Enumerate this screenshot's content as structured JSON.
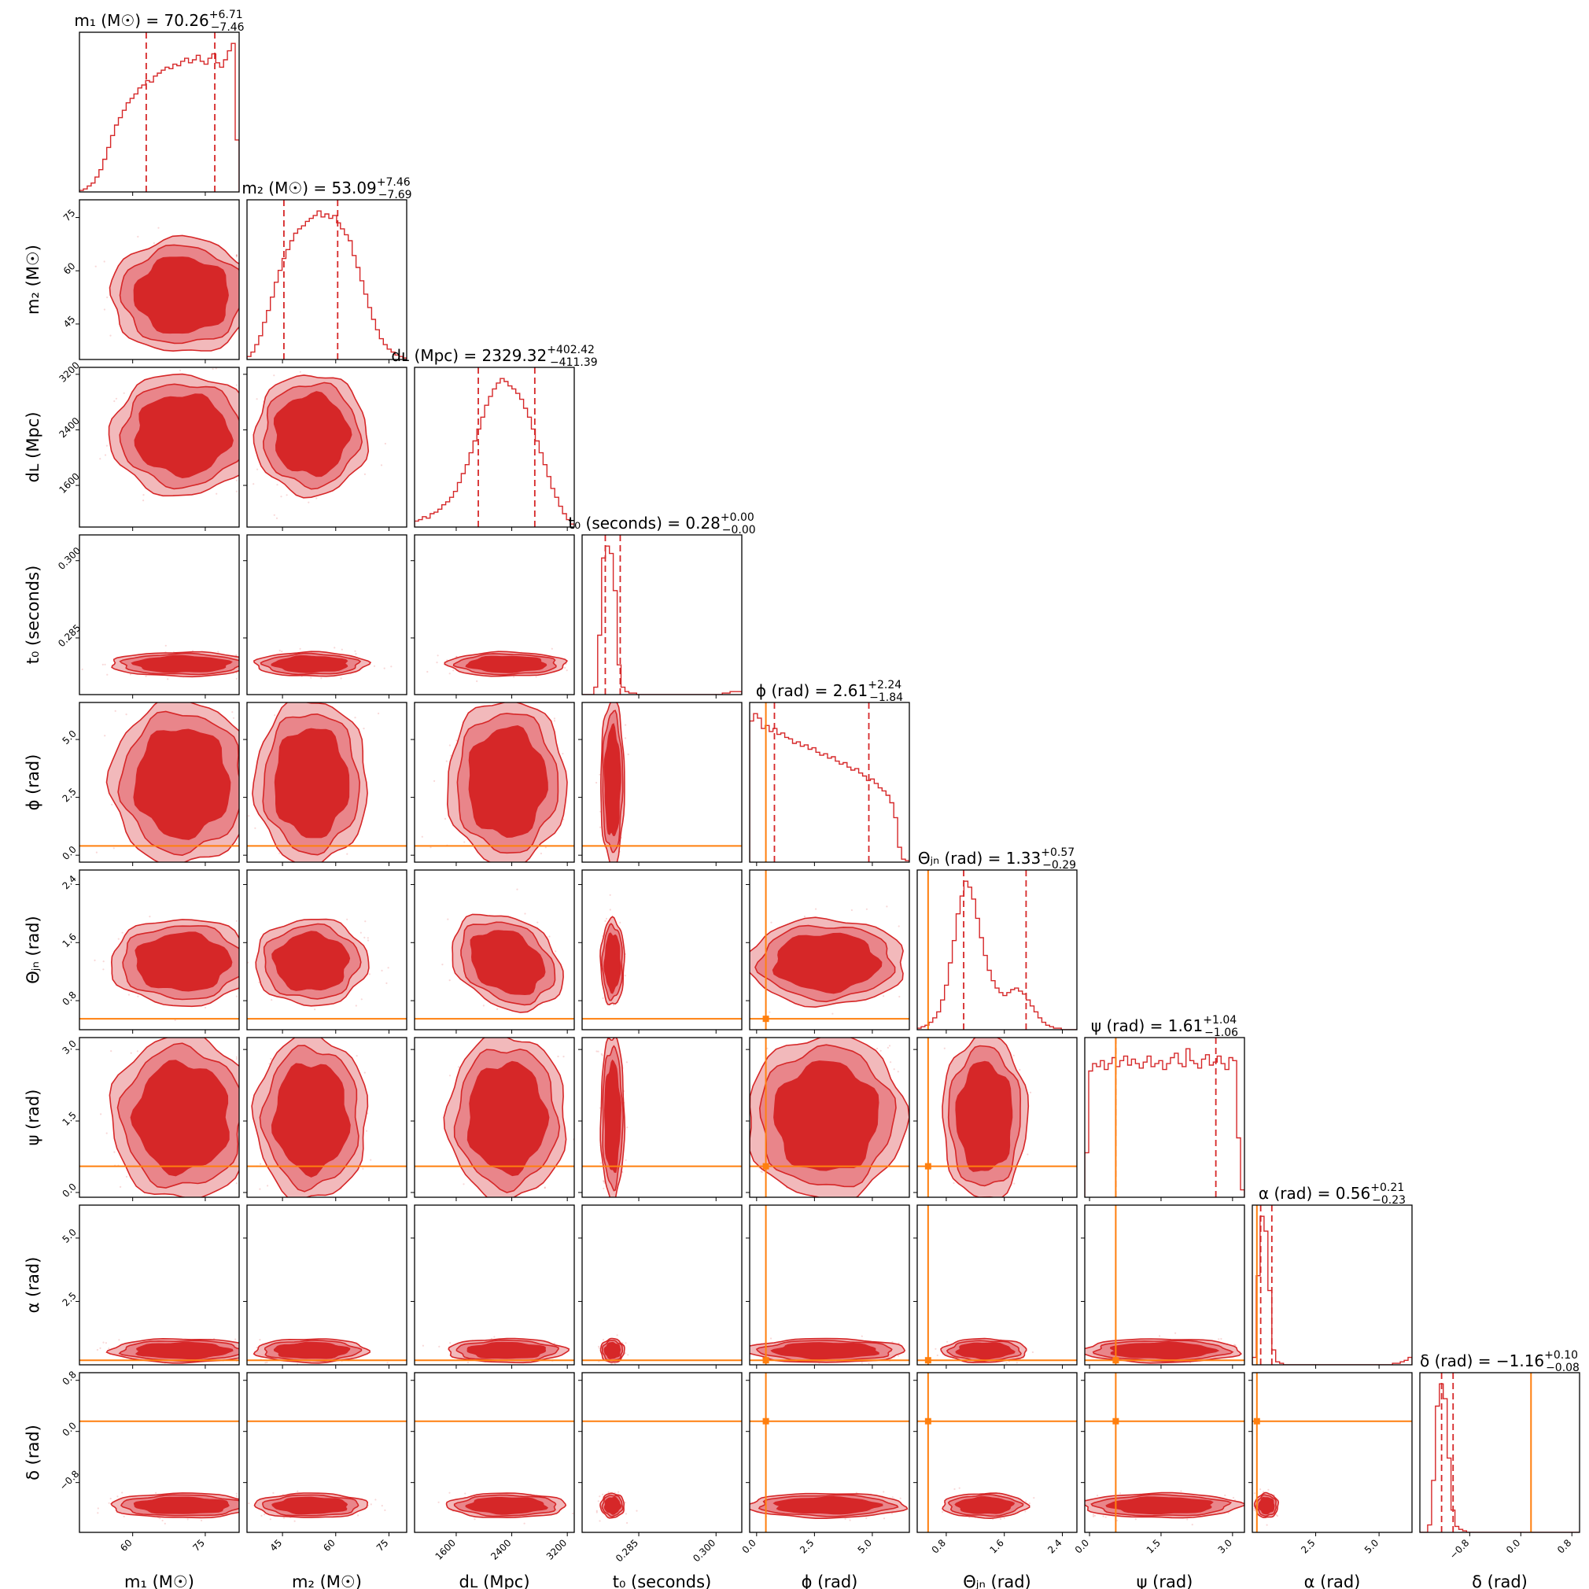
{
  "chart_data": {
    "type": "corner",
    "colors": {
      "posterior": "#d62728",
      "contour_fill_outer": "#f2b9bb",
      "contour_fill_mid": "#e9858a",
      "contour_fill_inner": "#d62728",
      "quantile": "#d62728",
      "truth": "#ff7f0e"
    },
    "parameters": [
      {
        "key": "m1",
        "label": "m₁ (M☉)",
        "title_prefix": "m₁ (M☉) = ",
        "median": "70.26",
        "plus": "+6.71",
        "minus": "−7.46",
        "range": [
          49,
          82
        ],
        "ticks": [
          60,
          75
        ],
        "tick_labels": [
          "60",
          "75"
        ],
        "q_low": 62.8,
        "q_high": 76.97,
        "mu": 70.26,
        "sigma": 7.1,
        "truth": null,
        "histogram": [
          0.01,
          0.02,
          0.04,
          0.06,
          0.1,
          0.15,
          0.22,
          0.3,
          0.38,
          0.45,
          0.5,
          0.55,
          0.6,
          0.63,
          0.66,
          0.7,
          0.72,
          0.75,
          0.74,
          0.78,
          0.8,
          0.82,
          0.84,
          0.83,
          0.86,
          0.85,
          0.88,
          0.9,
          0.87,
          0.89,
          0.92,
          0.88,
          0.86,
          0.9,
          0.93,
          0.87,
          0.84,
          0.89,
          0.95,
          1.0,
          0.35
        ]
      },
      {
        "key": "m2",
        "label": "m₂ (M☉)",
        "title_prefix": "m₂ (M☉) = ",
        "median": "53.09",
        "plus": "+7.46",
        "minus": "−7.69",
        "range": [
          35,
          80
        ],
        "ticks": [
          45,
          60,
          75
        ],
        "tick_labels": [
          "45",
          "60",
          "75"
        ],
        "q_low": 45.4,
        "q_high": 60.55,
        "mu": 53.09,
        "sigma": 7.6,
        "truth": null,
        "histogram": [
          0.02,
          0.05,
          0.1,
          0.16,
          0.25,
          0.33,
          0.42,
          0.52,
          0.6,
          0.68,
          0.74,
          0.8,
          0.85,
          0.88,
          0.9,
          0.93,
          0.95,
          0.97,
          1.0,
          0.96,
          0.98,
          0.95,
          0.97,
          0.92,
          0.88,
          0.84,
          0.8,
          0.7,
          0.62,
          0.53,
          0.44,
          0.35,
          0.27,
          0.2,
          0.14,
          0.1,
          0.07,
          0.05,
          0.03,
          0.02,
          0.01
        ]
      },
      {
        "key": "dL",
        "label": "dʟ (Mpc)",
        "title_prefix": "dʟ (Mpc) = ",
        "median": "2329.32",
        "plus": "+402.42",
        "minus": "−411.39",
        "range": [
          1000,
          3300
        ],
        "ticks": [
          1600,
          2400,
          3200
        ],
        "tick_labels": [
          "1600",
          "2400",
          "3200"
        ],
        "q_low": 1917.93,
        "q_high": 2731.74,
        "mu": 2329.32,
        "sigma": 410,
        "truth": null,
        "histogram": [
          0.04,
          0.05,
          0.07,
          0.06,
          0.09,
          0.1,
          0.12,
          0.15,
          0.17,
          0.2,
          0.24,
          0.3,
          0.36,
          0.42,
          0.5,
          0.58,
          0.66,
          0.74,
          0.82,
          0.88,
          0.93,
          0.97,
          1.0,
          0.98,
          0.95,
          0.93,
          0.9,
          0.86,
          0.8,
          0.74,
          0.66,
          0.58,
          0.5,
          0.42,
          0.34,
          0.26,
          0.2,
          0.14,
          0.09,
          0.05,
          0.02
        ]
      },
      {
        "key": "t0",
        "label": "t₀ (seconds)",
        "title_prefix": "t₀ (seconds) = ",
        "median": "0.28",
        "plus": "+0.00",
        "minus": "−0.00",
        "range": [
          0.274,
          0.305
        ],
        "ticks": [
          0.285,
          0.3
        ],
        "tick_labels": [
          "0.285",
          "0.300"
        ],
        "q_low": 0.2785,
        "q_high": 0.2814,
        "mu": 0.2799,
        "sigma": 0.0011,
        "truth": null,
        "histogram": [
          0,
          0,
          0,
          0.05,
          0.4,
          0.92,
          1.0,
          0.95,
          0.7,
          0.2,
          0.05,
          0.02,
          0.01,
          0.01,
          0,
          0,
          0,
          0,
          0,
          0,
          0,
          0,
          0,
          0,
          0,
          0,
          0,
          0,
          0,
          0,
          0,
          0,
          0,
          0,
          0,
          0,
          0.01,
          0.01,
          0.02,
          0.02,
          0.02
        ]
      },
      {
        "key": "phi",
        "label": "ϕ (rad)",
        "title_prefix": "ϕ (rad) = ",
        "median": "2.61",
        "plus": "+2.24",
        "minus": "−1.84",
        "range": [
          -0.3,
          6.6
        ],
        "ticks": [
          0,
          2.5,
          5
        ],
        "tick_labels": [
          "0.0",
          "2.5",
          "5.0"
        ],
        "q_low": 0.77,
        "q_high": 4.85,
        "mu": 2.61,
        "sigma": 1.9,
        "truth": 0.4,
        "histogram": [
          0.95,
          1.0,
          0.97,
          0.9,
          0.92,
          0.88,
          0.9,
          0.86,
          0.87,
          0.84,
          0.83,
          0.8,
          0.81,
          0.78,
          0.79,
          0.76,
          0.77,
          0.74,
          0.72,
          0.73,
          0.7,
          0.71,
          0.68,
          0.66,
          0.67,
          0.64,
          0.62,
          0.63,
          0.6,
          0.58,
          0.55,
          0.56,
          0.53,
          0.5,
          0.48,
          0.45,
          0.4,
          0.3,
          0.1,
          0.02,
          0.01
        ]
      },
      {
        "key": "thetajn",
        "label": "Θⱼₙ (rad)",
        "title_prefix": "Θⱼₙ (rad) = ",
        "median": "1.33",
        "plus": "+0.57",
        "minus": "−0.29",
        "range": [
          0.4,
          2.6
        ],
        "ticks": [
          0.8,
          1.6,
          2.4
        ],
        "tick_labels": [
          "0.8",
          "1.6",
          "2.4"
        ],
        "q_low": 1.04,
        "q_high": 1.9,
        "mu": 1.33,
        "sigma": 0.28,
        "truth": 0.55,
        "histogram": [
          0.01,
          0.02,
          0.03,
          0.05,
          0.08,
          0.12,
          0.2,
          0.3,
          0.45,
          0.6,
          0.78,
          0.9,
          1.0,
          0.96,
          0.88,
          0.75,
          0.62,
          0.5,
          0.4,
          0.33,
          0.28,
          0.25,
          0.23,
          0.25,
          0.27,
          0.28,
          0.26,
          0.24,
          0.2,
          0.16,
          0.12,
          0.08,
          0.05,
          0.03,
          0.02,
          0.01,
          0.01,
          0,
          0,
          0,
          0
        ]
      },
      {
        "key": "psi",
        "label": "ψ (rad)",
        "title_prefix": "ψ (rad) = ",
        "median": "1.61",
        "plus": "+1.04",
        "minus": "−1.06",
        "range": [
          -0.1,
          3.25
        ],
        "ticks": [
          0,
          1.5,
          3
        ],
        "tick_labels": [
          "0.0",
          "1.5",
          "3.0"
        ],
        "q_low": 0.55,
        "q_high": 2.65,
        "mu": 1.61,
        "sigma": 1.0,
        "truth": 0.55,
        "histogram": [
          0.3,
          0.85,
          0.9,
          0.88,
          0.92,
          0.86,
          0.9,
          0.94,
          0.88,
          0.92,
          0.95,
          0.89,
          0.93,
          0.9,
          0.87,
          0.91,
          0.95,
          0.88,
          0.9,
          0.92,
          0.86,
          0.9,
          0.94,
          0.97,
          0.9,
          0.88,
          1.0,
          0.92,
          0.9,
          0.87,
          0.93,
          0.96,
          0.89,
          0.91,
          0.95,
          0.9,
          0.86,
          0.94,
          0.92,
          0.4,
          0.05
        ]
      },
      {
        "key": "alpha",
        "label": "α (rad)",
        "title_prefix": "α (rad) = ",
        "median": "0.56",
        "plus": "+0.21",
        "minus": "−0.23",
        "range": [
          0,
          6.3
        ],
        "ticks": [
          2.5,
          5
        ],
        "tick_labels": [
          "2.5",
          "5.0"
        ],
        "q_low": 0.33,
        "q_high": 0.77,
        "mu": 0.56,
        "sigma": 0.22,
        "truth": 0.18,
        "histogram": [
          0.05,
          0.6,
          1.0,
          0.9,
          0.5,
          0.1,
          0.02,
          0.01,
          0,
          0,
          0,
          0,
          0,
          0,
          0,
          0,
          0,
          0,
          0,
          0,
          0,
          0,
          0,
          0,
          0,
          0,
          0,
          0,
          0,
          0,
          0,
          0,
          0,
          0,
          0,
          0,
          0.01,
          0.01,
          0.02,
          0.03,
          0.05
        ]
      },
      {
        "key": "delta",
        "label": "δ (rad)",
        "title_prefix": "δ (rad) = ",
        "median": "−1.16",
        "plus": "+0.10",
        "minus": "−0.08",
        "range": [
          -1.58,
          0.92
        ],
        "ticks": [
          -0.8,
          0,
          0.8
        ],
        "tick_labels": [
          "−0.8",
          "0.0",
          "0.8"
        ],
        "q_low": -1.24,
        "q_high": -1.06,
        "mu": -1.16,
        "sigma": 0.09,
        "truth": 0.16,
        "histogram": [
          0,
          0,
          0.05,
          0.35,
          0.85,
          1.0,
          0.9,
          0.5,
          0.15,
          0.04,
          0.02,
          0.01,
          0,
          0,
          0,
          0,
          0,
          0,
          0,
          0,
          0,
          0,
          0,
          0,
          0,
          0,
          0,
          0,
          0,
          0,
          0,
          0,
          0,
          0,
          0,
          0,
          0,
          0,
          0,
          0,
          0
        ]
      }
    ]
  }
}
